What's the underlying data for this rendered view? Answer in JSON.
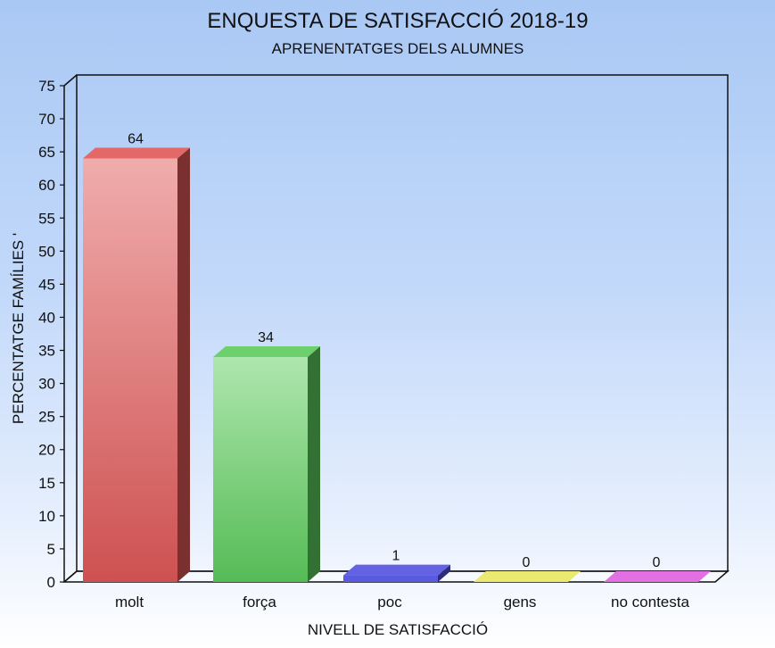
{
  "chart_data": {
    "type": "bar",
    "title": "ENQUESTA DE SATISFACCIÓ 2018-19",
    "subtitle": "APRENENTATGES DELS ALUMNES",
    "xlabel": "NIVELL DE SATISFACCIÓ",
    "ylabel": "PERCENTATGE FAMÍLIES '",
    "categories": [
      "molt",
      "força",
      "poc",
      "gens",
      "no contesta"
    ],
    "values": [
      64,
      34,
      1,
      0,
      0
    ],
    "value_labels": [
      "64",
      "34",
      "1",
      "0",
      "0"
    ],
    "ylim": [
      0,
      75
    ],
    "yticks": [
      "0",
      "5",
      "10",
      "15",
      "20",
      "25",
      "30",
      "35",
      "40",
      "45",
      "50",
      "55",
      "60",
      "65",
      "70",
      "75"
    ],
    "bar_colors": [
      "#e05858",
      "#5ccc5c",
      "#5050e0",
      "#e8e860",
      "#e060e0"
    ],
    "grid": false,
    "legend": "none",
    "style": "3d"
  }
}
